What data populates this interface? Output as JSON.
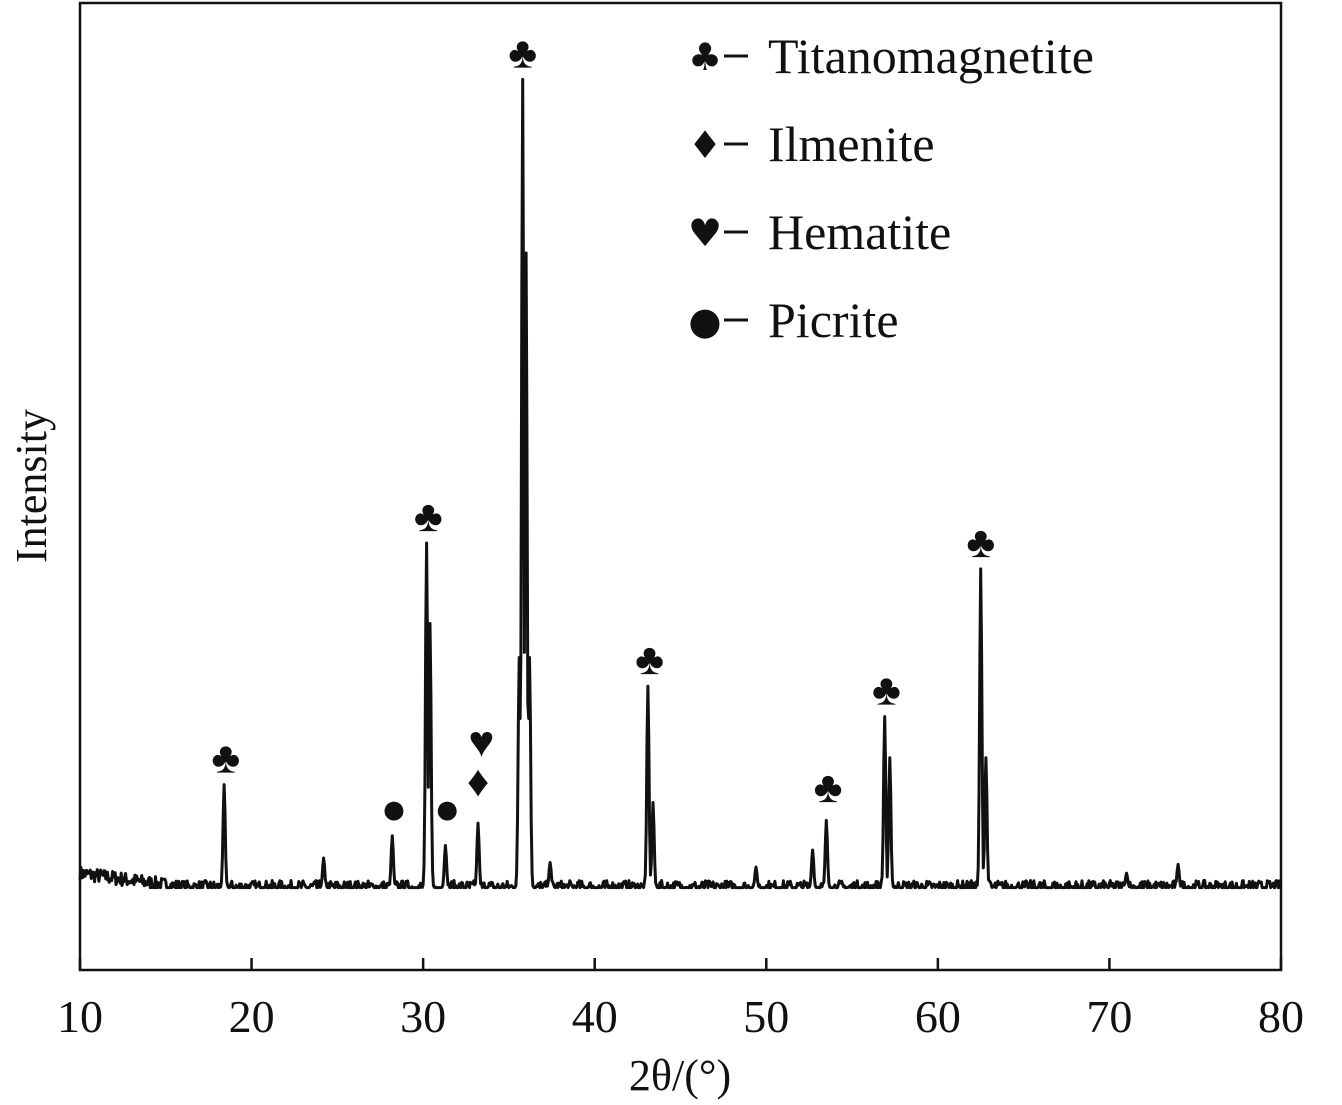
{
  "chart_data": {
    "type": "line",
    "title": "",
    "xlabel": "2θ/(°)",
    "ylabel": "Intensity",
    "xlim": [
      10,
      80
    ],
    "ylim": [
      0,
      100
    ],
    "x_ticks": [
      "10",
      "20",
      "30",
      "40",
      "50",
      "60",
      "70",
      "80"
    ],
    "y_ticks_shown": false,
    "grid": false,
    "legend_position": "top-right",
    "line_color": "#111111",
    "baseline_level": 5.3,
    "peaks": [
      {
        "x": 18.4,
        "y": 16.8
      },
      {
        "x": 24.2,
        "y": 8.6
      },
      {
        "x": 28.2,
        "y": 11.1
      },
      {
        "x": 30.2,
        "y": 43.8
      },
      {
        "x": 30.4,
        "y": 34.8
      },
      {
        "x": 31.3,
        "y": 10.0
      },
      {
        "x": 33.2,
        "y": 12.5
      },
      {
        "x": 35.6,
        "y": 31.0
      },
      {
        "x": 35.8,
        "y": 95.6
      },
      {
        "x": 36.0,
        "y": 76.2
      },
      {
        "x": 36.2,
        "y": 31.0
      },
      {
        "x": 37.4,
        "y": 8.1
      },
      {
        "x": 43.1,
        "y": 27.8
      },
      {
        "x": 43.4,
        "y": 14.8
      },
      {
        "x": 49.4,
        "y": 7.6
      },
      {
        "x": 52.7,
        "y": 9.5
      },
      {
        "x": 53.5,
        "y": 12.8
      },
      {
        "x": 56.9,
        "y": 24.4
      },
      {
        "x": 57.2,
        "y": 19.8
      },
      {
        "x": 62.5,
        "y": 40.9
      },
      {
        "x": 62.8,
        "y": 19.8
      },
      {
        "x": 71.0,
        "y": 6.9
      },
      {
        "x": 74.0,
        "y": 7.9
      }
    ],
    "legend": [
      {
        "symbol": "♣",
        "label": "Titanomagnetite"
      },
      {
        "symbol": "♦",
        "label": "Ilmenite"
      },
      {
        "symbol": "♥",
        "label": "Hematite"
      },
      {
        "symbol": "●",
        "label": "Picrite"
      }
    ],
    "annotations": [
      {
        "symbol": "♣",
        "x": 18.5,
        "y": 16.8
      },
      {
        "symbol": "●",
        "x": 28.3,
        "y": 11.1
      },
      {
        "symbol": "♣",
        "x": 30.3,
        "y": 43.8
      },
      {
        "symbol": "●",
        "x": 31.4,
        "y": 11.1
      },
      {
        "symbol": "♦",
        "x": 33.2,
        "y": 14.2
      },
      {
        "symbol": "♥",
        "x": 33.4,
        "y": 18.6
      },
      {
        "symbol": "♣",
        "x": 35.8,
        "y": 95.6
      },
      {
        "symbol": "♣",
        "x": 43.2,
        "y": 27.8
      },
      {
        "symbol": "♣",
        "x": 53.6,
        "y": 13.5
      },
      {
        "symbol": "♣",
        "x": 57.0,
        "y": 24.4
      },
      {
        "symbol": "♣",
        "x": 62.5,
        "y": 40.9
      }
    ]
  }
}
